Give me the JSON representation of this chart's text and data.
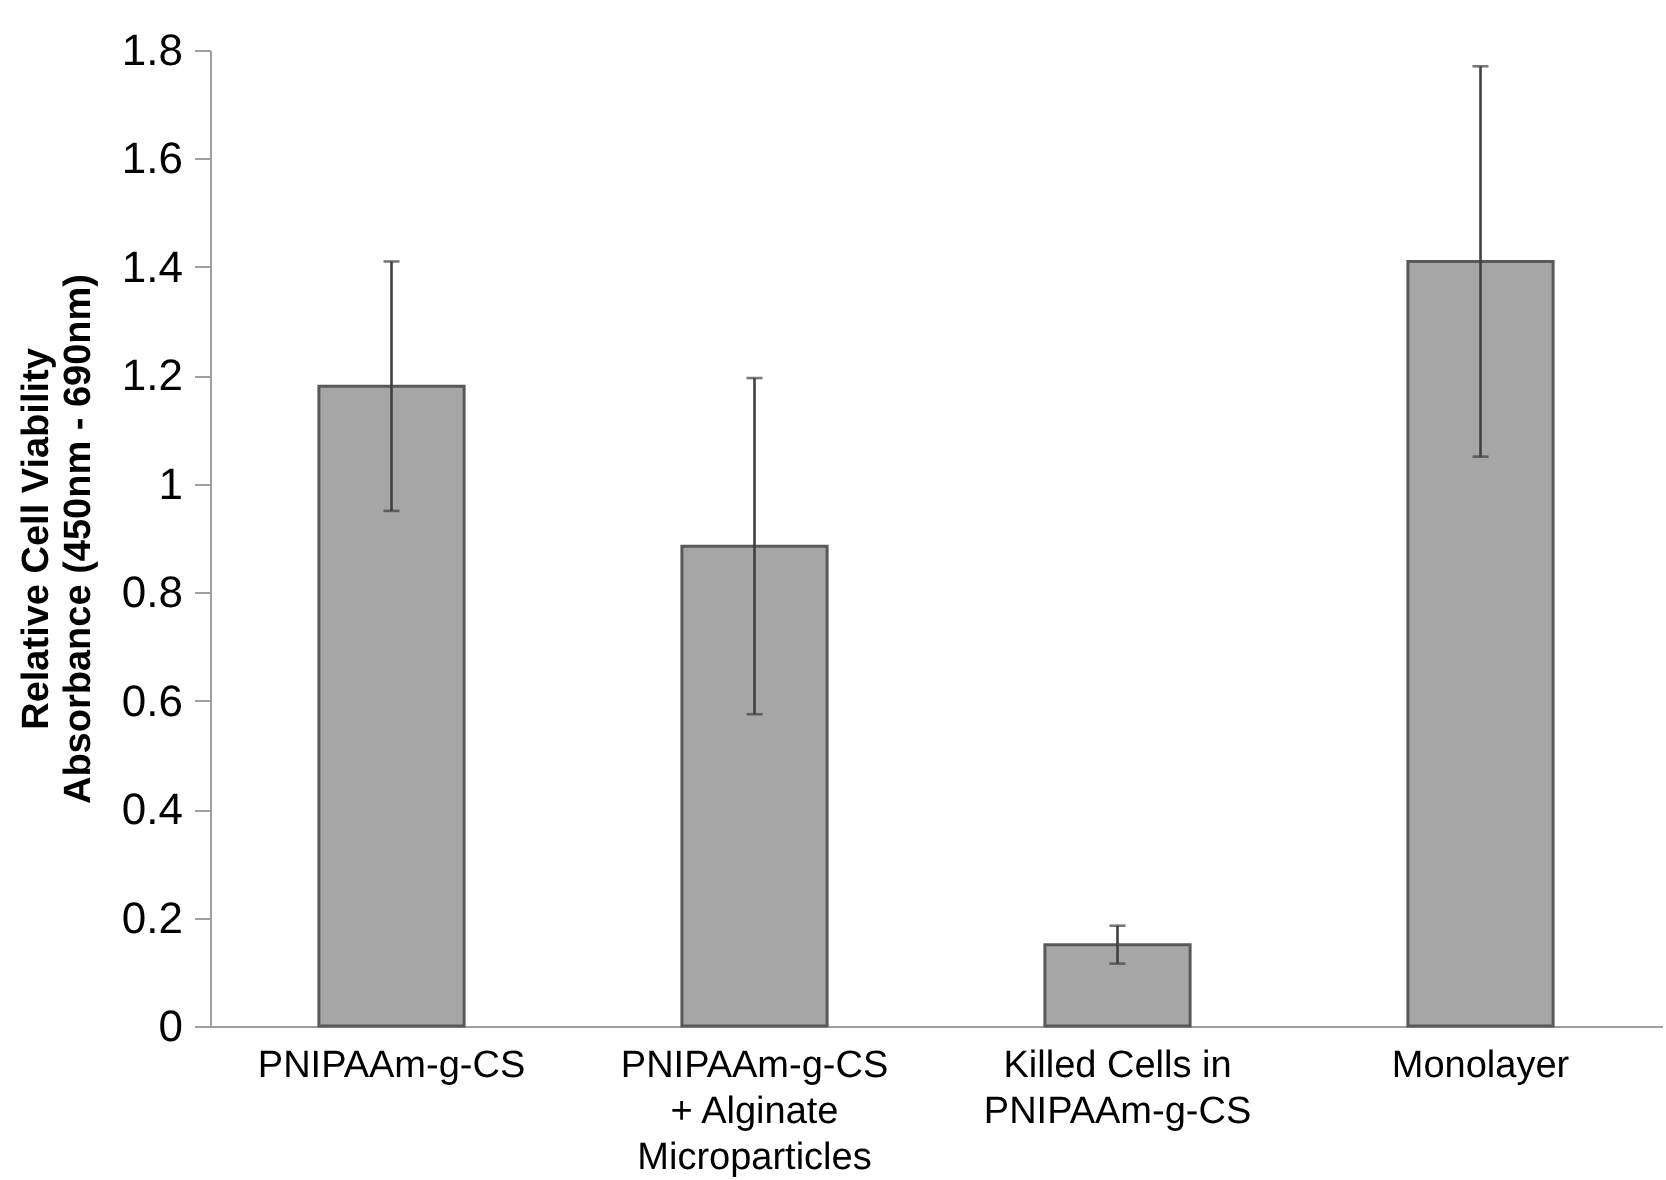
{
  "chart_data": {
    "type": "bar",
    "ylabel": "Relative Cell Viability\nAbsorbance (450nm - 690nm)",
    "categories": [
      "PNIPAAm-g-CS",
      "PNIPAAm-g-CS\n+ Alginate\nMicroparticles",
      "Killed Cells in\nPNIPAAm-g-CS",
      "Monolayer"
    ],
    "values": [
      1.18,
      0.885,
      0.15,
      1.41
    ],
    "errors": [
      0.23,
      0.31,
      0.035,
      0.36
    ],
    "color": "#a6a6a6",
    "ylim": [
      0,
      1.8
    ],
    "yticks": [
      0,
      0.2,
      0.4,
      0.6,
      0.8,
      1,
      1.2,
      1.4,
      1.6,
      1.8
    ],
    "grid": false
  }
}
